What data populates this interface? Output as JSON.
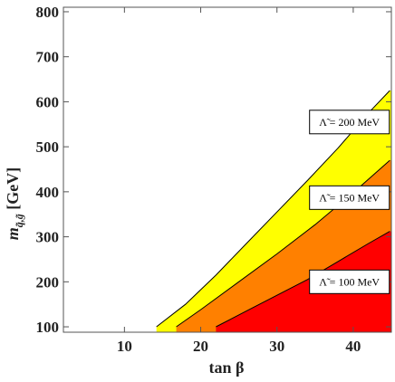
{
  "chart_data": {
    "type": "area",
    "title": "",
    "xlabel": "tan β",
    "ylabel": "m q̃,g̃ [GeV]",
    "ylabel_main": "m",
    "ylabel_sub": "q̃,g̃",
    "ylabel_unit": " [GeV]",
    "xlim": [
      2,
      45
    ],
    "ylim": [
      88,
      810
    ],
    "xticks": [
      10,
      20,
      30,
      40
    ],
    "yticks": [
      100,
      200,
      300,
      400,
      500,
      600,
      700,
      800
    ],
    "grid": false,
    "series": [
      {
        "name": "Λ̃ = 200 MeV",
        "label_text": "Λ̃ = 200 MeV",
        "label_at": [
          39.5,
          555
        ],
        "color": "#ffff00",
        "x": [
          14.2,
          18,
          22,
          26,
          30,
          34,
          38,
          42,
          44.8
        ],
        "y": [
          100,
          150,
          215,
          285,
          355,
          425,
          497,
          575,
          625
        ]
      },
      {
        "name": "Λ̃ = 150 MeV",
        "label_text": "Λ̃ = 150 MeV",
        "label_at": [
          39.5,
          387
        ],
        "color": "#ff8000",
        "x": [
          16.8,
          20,
          25,
          30,
          35,
          40,
          44.8
        ],
        "y": [
          100,
          138,
          200,
          262,
          327,
          398,
          470
        ]
      },
      {
        "name": "Λ̃ = 100 MeV",
        "label_text": "Λ̃ = 100 MeV",
        "label_at": [
          39.5,
          200
        ],
        "color": "#ff0000",
        "x": [
          22,
          26,
          30,
          34,
          38,
          42,
          44.8
        ],
        "y": [
          100,
          135,
          170,
          205,
          245,
          285,
          312
        ]
      }
    ]
  }
}
